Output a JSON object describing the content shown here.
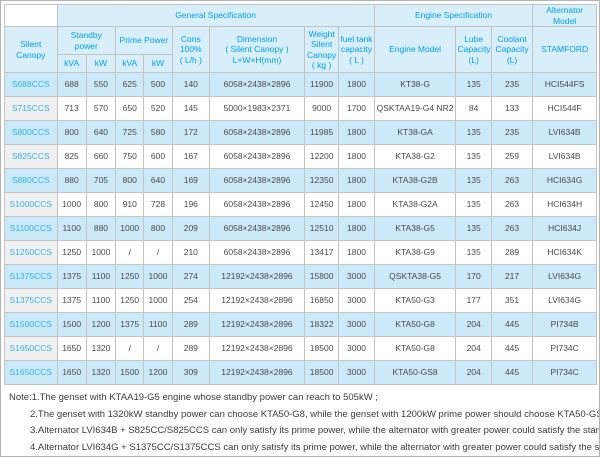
{
  "colors": {
    "header_bg": "#d8eefa",
    "header_text": "#00a0e9",
    "row_highlight": "#cbe9f9",
    "model_col_bg": "#f0f0f0",
    "model_text": "#2fb3ec",
    "value_text": "#4a4a4a"
  },
  "table": {
    "groups": {
      "general": "General Specification",
      "engine": "Engine Specification",
      "alternator": "Alternator Model"
    },
    "cols": {
      "silent_canopy": "Silent Canopy",
      "standby": "Standby power",
      "prime": "Prime Power",
      "kva": "kVA",
      "kw": "kW",
      "cons": "Cons\n100%\n( L/h )",
      "dimension": "Dimension\n( Silent Canopy )\nL×W×H(mm)",
      "weight": "Weight\nSilent\nCanopy\n( kg )",
      "fuel": "fuel tank\ncapacity\n( L )",
      "engine_model": "Engine Model",
      "lube": "Lube\nCapacity\n(L)",
      "coolant": "Coolant\nCapacity\n(L)",
      "stamford": "STAMFORD"
    },
    "rows": [
      [
        "S688CCS",
        "688",
        "550",
        "625",
        "500",
        "140",
        "6058×2438×2896",
        "11900",
        "1800",
        "KT38-G",
        "135",
        "235",
        "HCI544FS"
      ],
      [
        "S715CCS",
        "713",
        "570",
        "650",
        "520",
        "145",
        "5000×1983×2371",
        "9000",
        "1700",
        "QSKTAA19-G4 NR2",
        "84",
        "133",
        "HCI544F"
      ],
      [
        "S800CCS",
        "800",
        "640",
        "725",
        "580",
        "172",
        "6058×2438×2896",
        "11985",
        "1800",
        "KT38-GA",
        "135",
        "235",
        "LVI634B"
      ],
      [
        "S825CCS",
        "825",
        "660",
        "750",
        "600",
        "167",
        "6058×2438×2896",
        "12200",
        "1800",
        "KTA38-G2",
        "135",
        "259",
        "LVI634B"
      ],
      [
        "S880CCS",
        "880",
        "705",
        "800",
        "640",
        "169",
        "6058×2438×2896",
        "12350",
        "1800",
        "KTA38-G2B",
        "135",
        "263",
        "HCI634G"
      ],
      [
        "S1000CCS",
        "1000",
        "800",
        "910",
        "728",
        "196",
        "6058×2438×2896",
        "12450",
        "1800",
        "KTA38-G2A",
        "135",
        "263",
        "HCI634H"
      ],
      [
        "S1100CCS",
        "1100",
        "880",
        "1000",
        "800",
        "209",
        "6058×2438×2896",
        "12510",
        "1800",
        "KTA38-G5",
        "135",
        "263",
        "HCI634J"
      ],
      [
        "S1250CCS",
        "1250",
        "1000",
        "/",
        "/",
        "210",
        "6058×2438×2896",
        "13417",
        "1800",
        "KTA38-G9",
        "135",
        "289",
        "HCI634K"
      ],
      [
        "S1375CCS",
        "1375",
        "1100",
        "1250",
        "1000",
        "274",
        "12192×2438×2896",
        "15800",
        "3000",
        "QSKTA38-G5",
        "170",
        "217",
        "LVI634G"
      ],
      [
        "S1375CCS",
        "1375",
        "1100",
        "1250",
        "1000",
        "254",
        "12192×2438×2896",
        "16850",
        "3000",
        "KTA50-G3",
        "177",
        "351",
        "LVI634G"
      ],
      [
        "S1500CCS",
        "1500",
        "1200",
        "1375",
        "1100",
        "289",
        "12192×2438×2896",
        "18322",
        "3000",
        "KTA50-G8",
        "204",
        "445",
        "PI734B"
      ],
      [
        "S1650CCS",
        "1650",
        "1320",
        "/",
        "/",
        "289",
        "12192×2438×2896",
        "18500",
        "3000",
        "KTA50-G8",
        "204",
        "445",
        "PI734C"
      ],
      [
        "S1650CCS",
        "1650",
        "1320",
        "1500",
        "1200",
        "309",
        "12192×2438×2896",
        "18500",
        "3000",
        "KTA50-GS8",
        "204",
        "445",
        "PI734C"
      ]
    ]
  },
  "notes": [
    "Note:1.The genset with KTAA19-G5 engine whose standby power can reach to 505kW ;",
    "2.The genset with 1320kW standby power can choose KTA50-G8, while the genset with 1200kW prime power should choose KTA50-GS8 ;",
    "3.Alternator LVI634B + S825CC/S825CCS can only satisfy its prime power, while the alternator with greater power could satisfy the standby power ;",
    "4.Alternator LVI634G + S1375CC/S1375CCS can only satisfy its prime power, while the alternator with greater power could satisfy the standby power."
  ]
}
